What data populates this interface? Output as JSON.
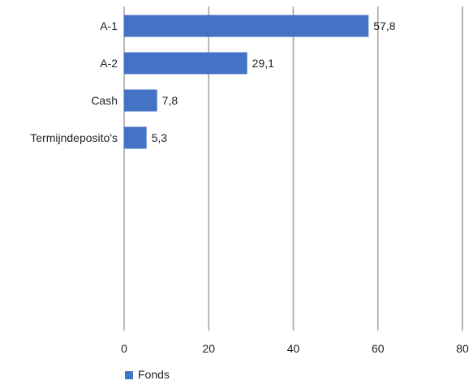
{
  "chart_data": {
    "type": "bar",
    "orientation": "horizontal",
    "categories": [
      "A-1",
      "A-2",
      "Cash",
      "Termijndeposito's"
    ],
    "series": [
      {
        "name": "Fonds",
        "values": [
          57.8,
          29.1,
          7.8,
          5.3
        ],
        "value_labels": [
          "57,8",
          "29,1",
          "7,8",
          "5,3"
        ],
        "color": "#4472C4"
      }
    ],
    "xlim": [
      0,
      80
    ],
    "x_ticks": [
      0,
      20,
      40,
      60,
      80
    ],
    "x_tick_labels": [
      "0",
      "20",
      "40",
      "60",
      "80"
    ],
    "grid": "vertical",
    "legend": "bottom-left",
    "title": "",
    "xlabel": "",
    "ylabel": ""
  },
  "colors": {
    "bar": "#4472C4",
    "grid": "#A6A6A6",
    "text": "#222222"
  }
}
